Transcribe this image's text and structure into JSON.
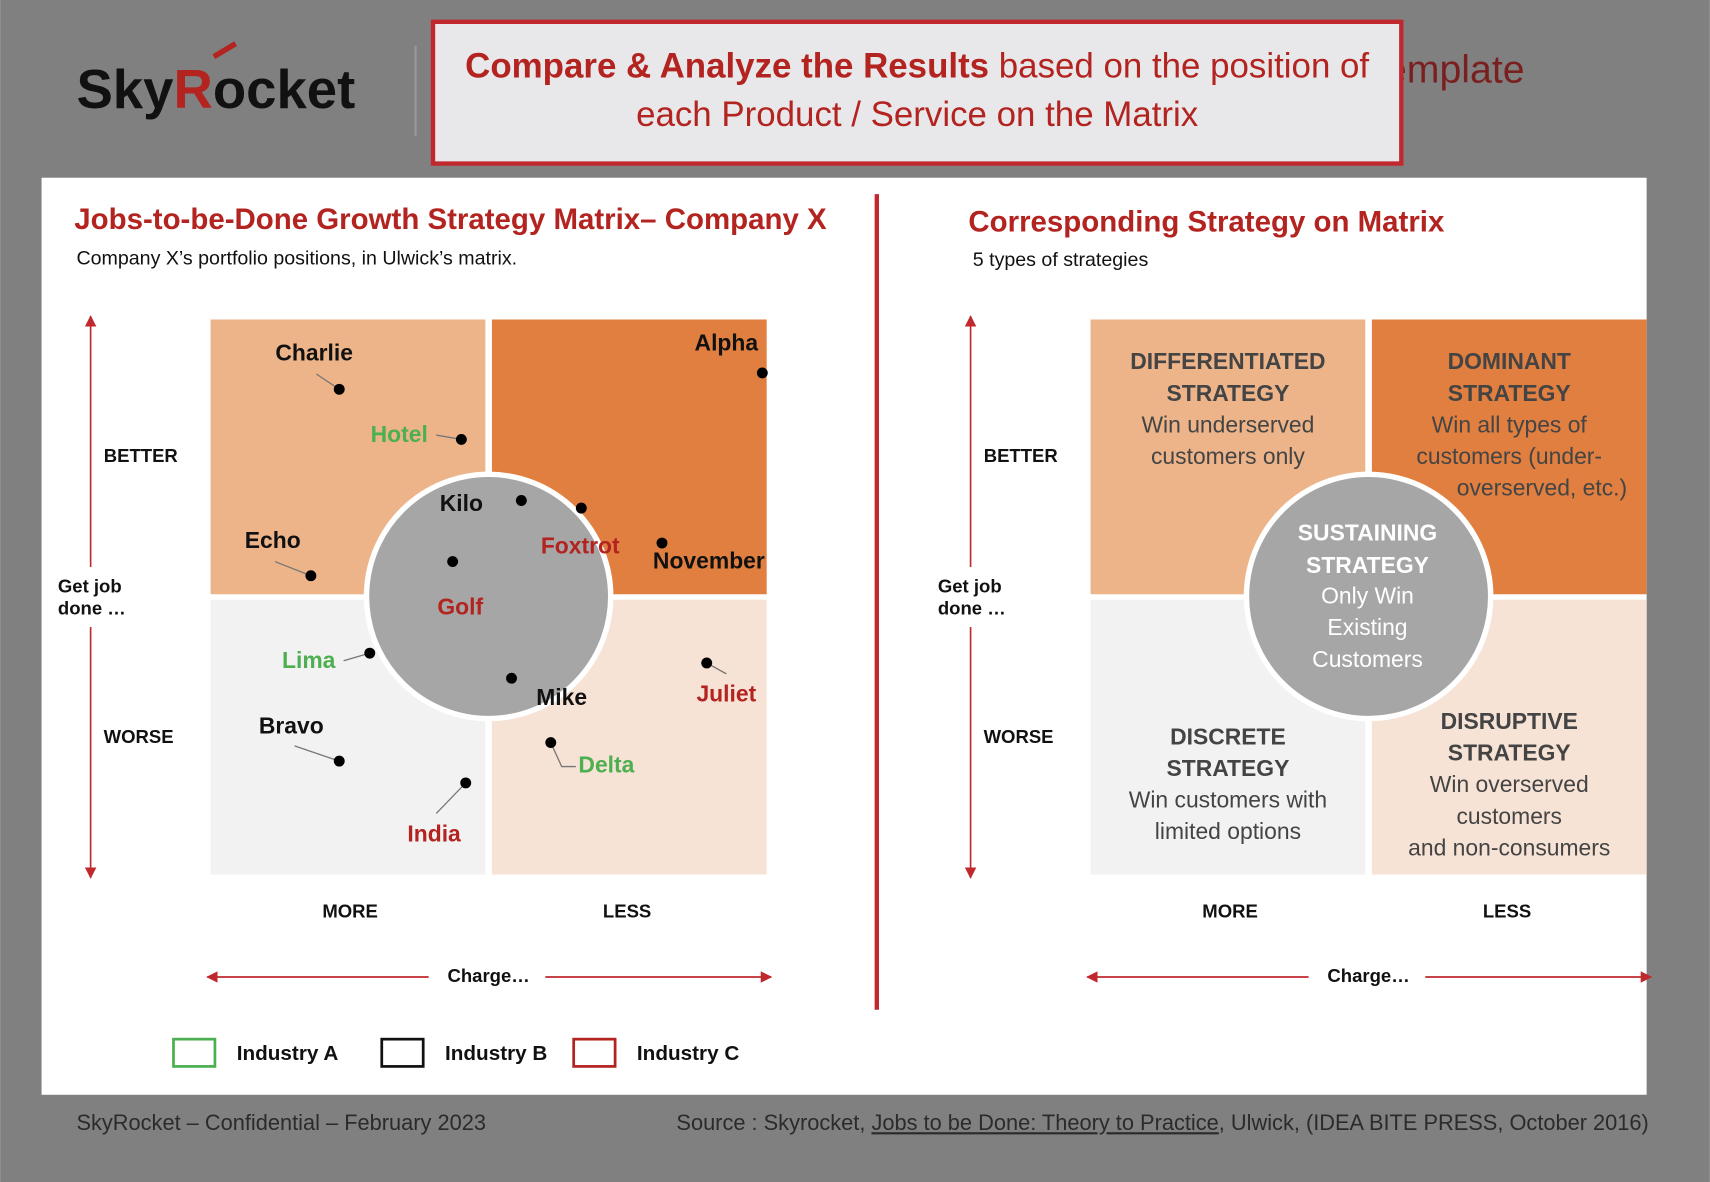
{
  "header": {
    "logo": [
      "Sky",
      "R",
      "ocket"
    ],
    "hidden_title": "emplate",
    "callout": {
      "bold": "Compare & Analyze the Results",
      "rest": " based on the position of",
      "line2": "each Product / Service on the Matrix"
    }
  },
  "left": {
    "title": "Jobs-to-be-Done Growth Strategy Matrix– Company X",
    "subtitle": "Company X’s portfolio positions, in Ulwick’s matrix.",
    "y_top": "BETTER",
    "y_bottom": "WORSE",
    "y_axis": [
      "Get job",
      "done …"
    ],
    "x_left": "MORE",
    "x_right": "LESS",
    "x_axis": "Charge…",
    "points": [
      {
        "label": "Charlie",
        "color": "#111111"
      },
      {
        "label": "Hotel",
        "color": "#4caf50"
      },
      {
        "label": "Alpha",
        "color": "#111111"
      },
      {
        "label": "Kilo",
        "color": "#111111"
      },
      {
        "label": "Foxtrot",
        "color": "#b3231f"
      },
      {
        "label": "November",
        "color": "#111111"
      },
      {
        "label": "Echo",
        "color": "#111111"
      },
      {
        "label": "Golf",
        "color": "#b3231f"
      },
      {
        "label": "Lima",
        "color": "#4caf50"
      },
      {
        "label": "Mike",
        "color": "#111111"
      },
      {
        "label": "Juliet",
        "color": "#b3231f"
      },
      {
        "label": "Bravo",
        "color": "#111111"
      },
      {
        "label": "Delta",
        "color": "#4caf50"
      },
      {
        "label": "India",
        "color": "#b3231f"
      }
    ],
    "legend": [
      {
        "label": "Industry A",
        "color": "#4caf50"
      },
      {
        "label": "Industry B",
        "color": "#111111"
      },
      {
        "label": "Industry C",
        "color": "#b3231f"
      }
    ]
  },
  "right": {
    "title": "Corresponding Strategy on Matrix",
    "subtitle": "5 types of strategies",
    "y_top": "BETTER",
    "y_bottom": "WORSE",
    "y_axis": [
      "Get job",
      "done …"
    ],
    "x_left": "MORE",
    "x_right": "LESS",
    "x_axis": "Charge…",
    "quadrants": [
      {
        "title": [
          "DIFFERENTIATED",
          "STRATEGY"
        ],
        "text": [
          "Win underserved",
          "customers only"
        ]
      },
      {
        "title": [
          "DOMINANT",
          "STRATEGY"
        ],
        "text": [
          "Win all types of",
          "customers (under-",
          "overserved, etc.)"
        ]
      },
      {
        "title": [
          "DISCRETE",
          "STRATEGY"
        ],
        "text": [
          "Win customers with",
          "limited options"
        ]
      },
      {
        "title": [
          "DISRUPTIVE",
          "STRATEGY"
        ],
        "text": [
          "Win overserved",
          "customers",
          "and non-consumers"
        ]
      }
    ],
    "center": {
      "title": [
        "SUSTAINING",
        "STRATEGY"
      ],
      "text": [
        "Only Win",
        "Existing",
        "Customers"
      ]
    }
  },
  "footer": {
    "left": "SkyRocket – Confidential – February 2023",
    "source": [
      "Source : Skyrocket, ",
      "Jobs to be Done: Theory to Practice",
      ", Ulwick, (IDEA BITE PRESS, October 2016)"
    ]
  }
}
